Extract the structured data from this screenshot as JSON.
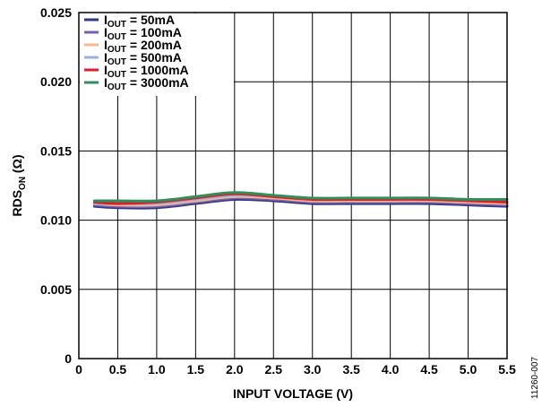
{
  "chart_data": {
    "type": "line",
    "xlabel": "INPUT VOLTAGE (V)",
    "ylabel_main": "RDS",
    "ylabel_sub": "ON",
    "ylabel_unit": " (Ω)",
    "xlim": [
      0,
      5.5
    ],
    "ylim": [
      0,
      0.025
    ],
    "xticks": [
      {
        "value": 0,
        "label": "0"
      },
      {
        "value": 0.5,
        "label": "0.5"
      },
      {
        "value": 1.0,
        "label": "1.0"
      },
      {
        "value": 1.5,
        "label": "1.5"
      },
      {
        "value": 2.0,
        "label": "2.0"
      },
      {
        "value": 2.5,
        "label": "2.5"
      },
      {
        "value": 3.0,
        "label": "3.0"
      },
      {
        "value": 3.5,
        "label": "3.5"
      },
      {
        "value": 4.0,
        "label": "4.0"
      },
      {
        "value": 4.5,
        "label": "4.5"
      },
      {
        "value": 5.0,
        "label": "5.0"
      },
      {
        "value": 5.5,
        "label": "5.5"
      }
    ],
    "yticks": [
      {
        "value": 0,
        "label": "0"
      },
      {
        "value": 0.005,
        "label": "0.005"
      },
      {
        "value": 0.01,
        "label": "0.010"
      },
      {
        "value": 0.015,
        "label": "0.015"
      },
      {
        "value": 0.02,
        "label": "0.020"
      },
      {
        "value": 0.025,
        "label": "0.025"
      }
    ],
    "grid": true,
    "legend_position": "top-left",
    "x": [
      0.2,
      0.5,
      1.0,
      1.5,
      2.0,
      2.5,
      3.0,
      3.5,
      4.0,
      4.5,
      5.0,
      5.5
    ],
    "series": [
      {
        "name_main": "I",
        "name_sub": "OUT",
        "name_rest": " = 50mA",
        "color": "#2e3a87",
        "values": [
          0.011,
          0.0109,
          0.0109,
          0.0112,
          0.0115,
          0.0114,
          0.0112,
          0.0112,
          0.0112,
          0.0112,
          0.0111,
          0.011
        ]
      },
      {
        "name_main": "I",
        "name_sub": "OUT",
        "name_rest": " = 100mA",
        "color": "#7a5fb0",
        "values": [
          0.0111,
          0.011,
          0.011,
          0.0113,
          0.0116,
          0.0115,
          0.0113,
          0.0113,
          0.0113,
          0.0113,
          0.0112,
          0.0111
        ]
      },
      {
        "name_main": "I",
        "name_sub": "OUT",
        "name_rest": " = 200mA",
        "color": "#f5b98a",
        "values": [
          0.0112,
          0.0111,
          0.0111,
          0.0114,
          0.0117,
          0.0116,
          0.0114,
          0.0114,
          0.0114,
          0.0114,
          0.0113,
          0.0112
        ]
      },
      {
        "name_main": "I",
        "name_sub": "OUT",
        "name_rest": " = 500mA",
        "color": "#9ab2d9",
        "values": [
          0.0112,
          0.0112,
          0.0112,
          0.0115,
          0.0118,
          0.0117,
          0.0115,
          0.0115,
          0.0115,
          0.0115,
          0.0114,
          0.0113
        ]
      },
      {
        "name_main": "I",
        "name_sub": "OUT",
        "name_rest": " = 1000mA",
        "color": "#d9212b",
        "values": [
          0.0113,
          0.0112,
          0.0113,
          0.0116,
          0.0119,
          0.0117,
          0.0115,
          0.0115,
          0.0115,
          0.0115,
          0.0114,
          0.0113
        ]
      },
      {
        "name_main": "I",
        "name_sub": "OUT",
        "name_rest": " = 3000mA",
        "color": "#2f8f5c",
        "values": [
          0.0114,
          0.0114,
          0.0114,
          0.0117,
          0.012,
          0.0118,
          0.0116,
          0.0116,
          0.0116,
          0.0116,
          0.0115,
          0.0115
        ]
      }
    ],
    "figure_code": "11260-007"
  }
}
